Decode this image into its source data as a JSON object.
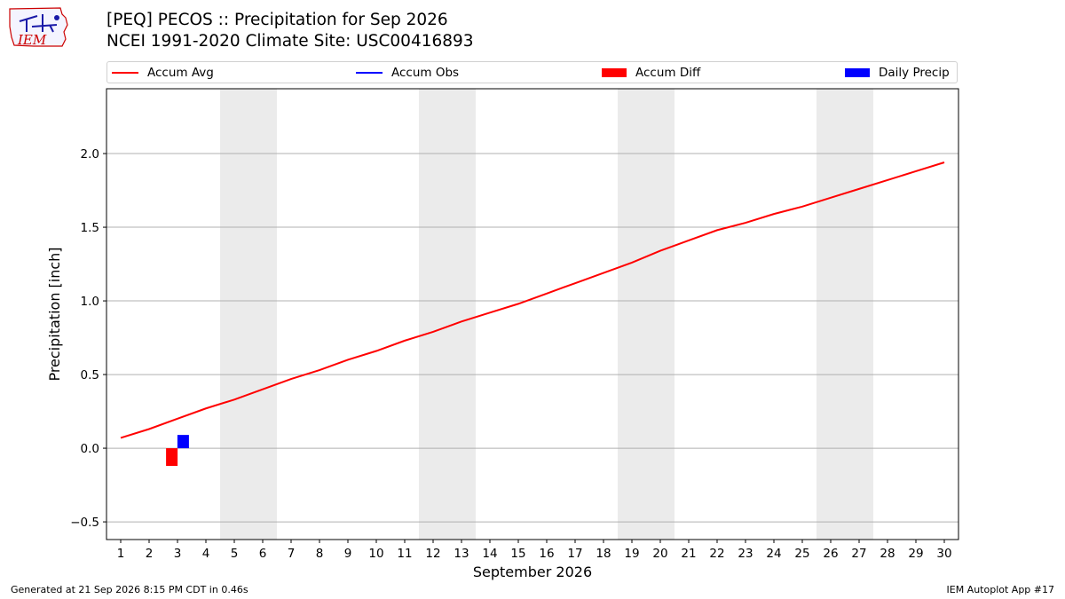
{
  "header": {
    "title_line1": "[PEQ] PECOS :: Precipitation for Sep 2026",
    "title_line2": "NCEI 1991-2020 Climate Site: USC00416893"
  },
  "logo": {
    "text": "IEM",
    "color": "#cc0000"
  },
  "legend": {
    "placement": "top",
    "items": [
      {
        "label": "Accum Avg",
        "kind": "line",
        "color": "#ff0000"
      },
      {
        "label": "Accum Obs",
        "kind": "line",
        "color": "#0000ff"
      },
      {
        "label": "Accum Diff",
        "kind": "patch",
        "color": "#ff0000"
      },
      {
        "label": "Daily Precip",
        "kind": "patch",
        "color": "#0000ff"
      }
    ]
  },
  "footer": {
    "left": "Generated at 21 Sep 2026 8:15 PM CDT in 0.46s",
    "right": "IEM Autoplot App #17"
  },
  "chart_data": {
    "type": "line",
    "xlabel": "September 2026",
    "ylabel": "Precipitation [inch]",
    "xlim": [
      0.5,
      30.5
    ],
    "ylim": [
      -0.62,
      2.44
    ],
    "yticks": [
      -0.5,
      0.0,
      0.5,
      1.0,
      1.5,
      2.0
    ],
    "ytick_labels": [
      "−0.5",
      "0.0",
      "0.5",
      "1.0",
      "1.5",
      "2.0"
    ],
    "xticks": [
      1,
      2,
      3,
      4,
      5,
      6,
      7,
      8,
      9,
      10,
      11,
      12,
      13,
      14,
      15,
      16,
      17,
      18,
      19,
      20,
      21,
      22,
      23,
      24,
      25,
      26,
      27,
      28,
      29,
      30
    ],
    "grid": "horizontal",
    "weekend_shading": [
      [
        4.5,
        6.5
      ],
      [
        11.5,
        13.5
      ],
      [
        18.5,
        20.5
      ],
      [
        25.5,
        27.5
      ]
    ],
    "weekend_color": "#ebebeb",
    "series": [
      {
        "name": "Accum Avg",
        "type": "line",
        "color": "#ff0000",
        "x": [
          1,
          2,
          3,
          4,
          5,
          6,
          7,
          8,
          9,
          10,
          11,
          12,
          13,
          14,
          15,
          16,
          17,
          18,
          19,
          20,
          21,
          22,
          23,
          24,
          25,
          26,
          27,
          28,
          29,
          30
        ],
        "values": [
          0.07,
          0.13,
          0.2,
          0.27,
          0.33,
          0.4,
          0.47,
          0.53,
          0.6,
          0.66,
          0.73,
          0.79,
          0.86,
          0.92,
          0.98,
          1.05,
          1.12,
          1.19,
          1.26,
          1.34,
          1.41,
          1.48,
          1.53,
          1.59,
          1.64,
          1.7,
          1.76,
          1.82,
          1.88,
          1.94
        ]
      },
      {
        "name": "Accum Diff",
        "type": "bar",
        "color": "#ff0000",
        "x": [
          2.8
        ],
        "values": [
          -0.12
        ]
      },
      {
        "name": "Daily Precip",
        "type": "bar",
        "color": "#0000ff",
        "x": [
          3.2
        ],
        "values": [
          0.09
        ]
      }
    ]
  }
}
